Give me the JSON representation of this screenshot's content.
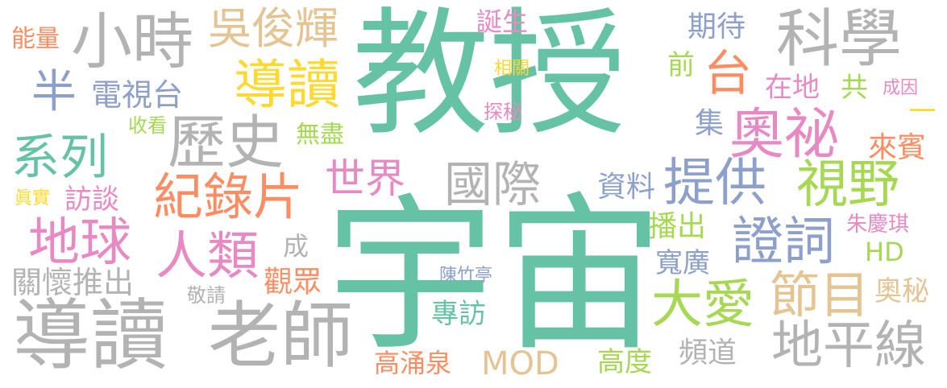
{
  "palette": {
    "teal": "#66c2a5",
    "orange": "#fc8d62",
    "blue": "#8da0cb",
    "pink": "#e78ac3",
    "green": "#a6d854",
    "yellow": "#ffd92f",
    "tan": "#e5c494",
    "gray": "#b3b3b3"
  },
  "words": [
    {
      "text": "教授",
      "color": "#66c2a5"
    },
    {
      "text": "宇宙",
      "color": "#66c2a5"
    },
    {
      "text": "小時",
      "color": "#b3b3b3"
    },
    {
      "text": "科學",
      "color": "#b3b3b3"
    },
    {
      "text": "導讀",
      "color": "#ffd92f"
    },
    {
      "text": "吳俊輝",
      "color": "#e5c494"
    },
    {
      "text": "能量",
      "color": "#fc8d62"
    },
    {
      "text": "半",
      "color": "#8da0cb"
    },
    {
      "text": "電視台",
      "color": "#8da0cb"
    },
    {
      "text": "誕生",
      "color": "#e78ac3"
    },
    {
      "text": "期待",
      "color": "#8da0cb"
    },
    {
      "text": "台",
      "color": "#fc8d62"
    },
    {
      "text": "前",
      "color": "#a6d854"
    },
    {
      "text": "相關",
      "color": "#ffd92f"
    },
    {
      "text": "在地",
      "color": "#e78ac3"
    },
    {
      "text": "共",
      "color": "#a6d854"
    },
    {
      "text": "成因",
      "color": "#e78ac3"
    },
    {
      "text": "一",
      "color": "#ffd92f"
    },
    {
      "text": "探秘",
      "color": "#e78ac3"
    },
    {
      "text": "收看",
      "color": "#a6d854"
    },
    {
      "text": "歷史",
      "color": "#b3b3b3"
    },
    {
      "text": "奧祕",
      "color": "#e78ac3"
    },
    {
      "text": "集",
      "color": "#8da0cb"
    },
    {
      "text": "來賓",
      "color": "#fc8d62"
    },
    {
      "text": "系列",
      "color": "#66c2a5"
    },
    {
      "text": "無盡",
      "color": "#a6d854"
    },
    {
      "text": "世界",
      "color": "#e78ac3"
    },
    {
      "text": "國際",
      "color": "#b3b3b3"
    },
    {
      "text": "提供",
      "color": "#8da0cb"
    },
    {
      "text": "視野",
      "color": "#a6d854"
    },
    {
      "text": "紀錄片",
      "color": "#fc8d62"
    },
    {
      "text": "資料",
      "color": "#8da0cb"
    },
    {
      "text": "眞實",
      "color": "#ffd92f"
    },
    {
      "text": "訪談",
      "color": "#e78ac3"
    },
    {
      "text": "地球",
      "color": "#e78ac3"
    },
    {
      "text": "播出",
      "color": "#a6d854"
    },
    {
      "text": "證詞",
      "color": "#8da0cb"
    },
    {
      "text": "朱慶琪",
      "color": "#e78ac3"
    },
    {
      "text": "成",
      "color": "#b3b3b3"
    },
    {
      "text": "人類",
      "color": "#e78ac3"
    },
    {
      "text": "寬廣",
      "color": "#8da0cb"
    },
    {
      "text": "HD",
      "color": "#a6d854"
    },
    {
      "text": "關懷推出",
      "color": "#b3b3b3"
    },
    {
      "text": "觀眾",
      "color": "#fc8d62"
    },
    {
      "text": "陳竹亭",
      "color": "#8da0cb"
    },
    {
      "text": "節目",
      "color": "#e5c494"
    },
    {
      "text": "大愛",
      "color": "#a6d854"
    },
    {
      "text": "奧秘",
      "color": "#e5c494"
    },
    {
      "text": "敬請",
      "color": "#b3b3b3"
    },
    {
      "text": "導讀",
      "color": "#b3b3b3"
    },
    {
      "text": "老師",
      "color": "#b3b3b3"
    },
    {
      "text": "專訪",
      "color": "#66c2a5"
    },
    {
      "text": "地平線",
      "color": "#b3b3b3"
    },
    {
      "text": "高涌泉",
      "color": "#fc8d62"
    },
    {
      "text": "MOD",
      "color": "#e5c494"
    },
    {
      "text": "高度",
      "color": "#a6d854"
    },
    {
      "text": "頻道",
      "color": "#b3b3b3"
    }
  ]
}
